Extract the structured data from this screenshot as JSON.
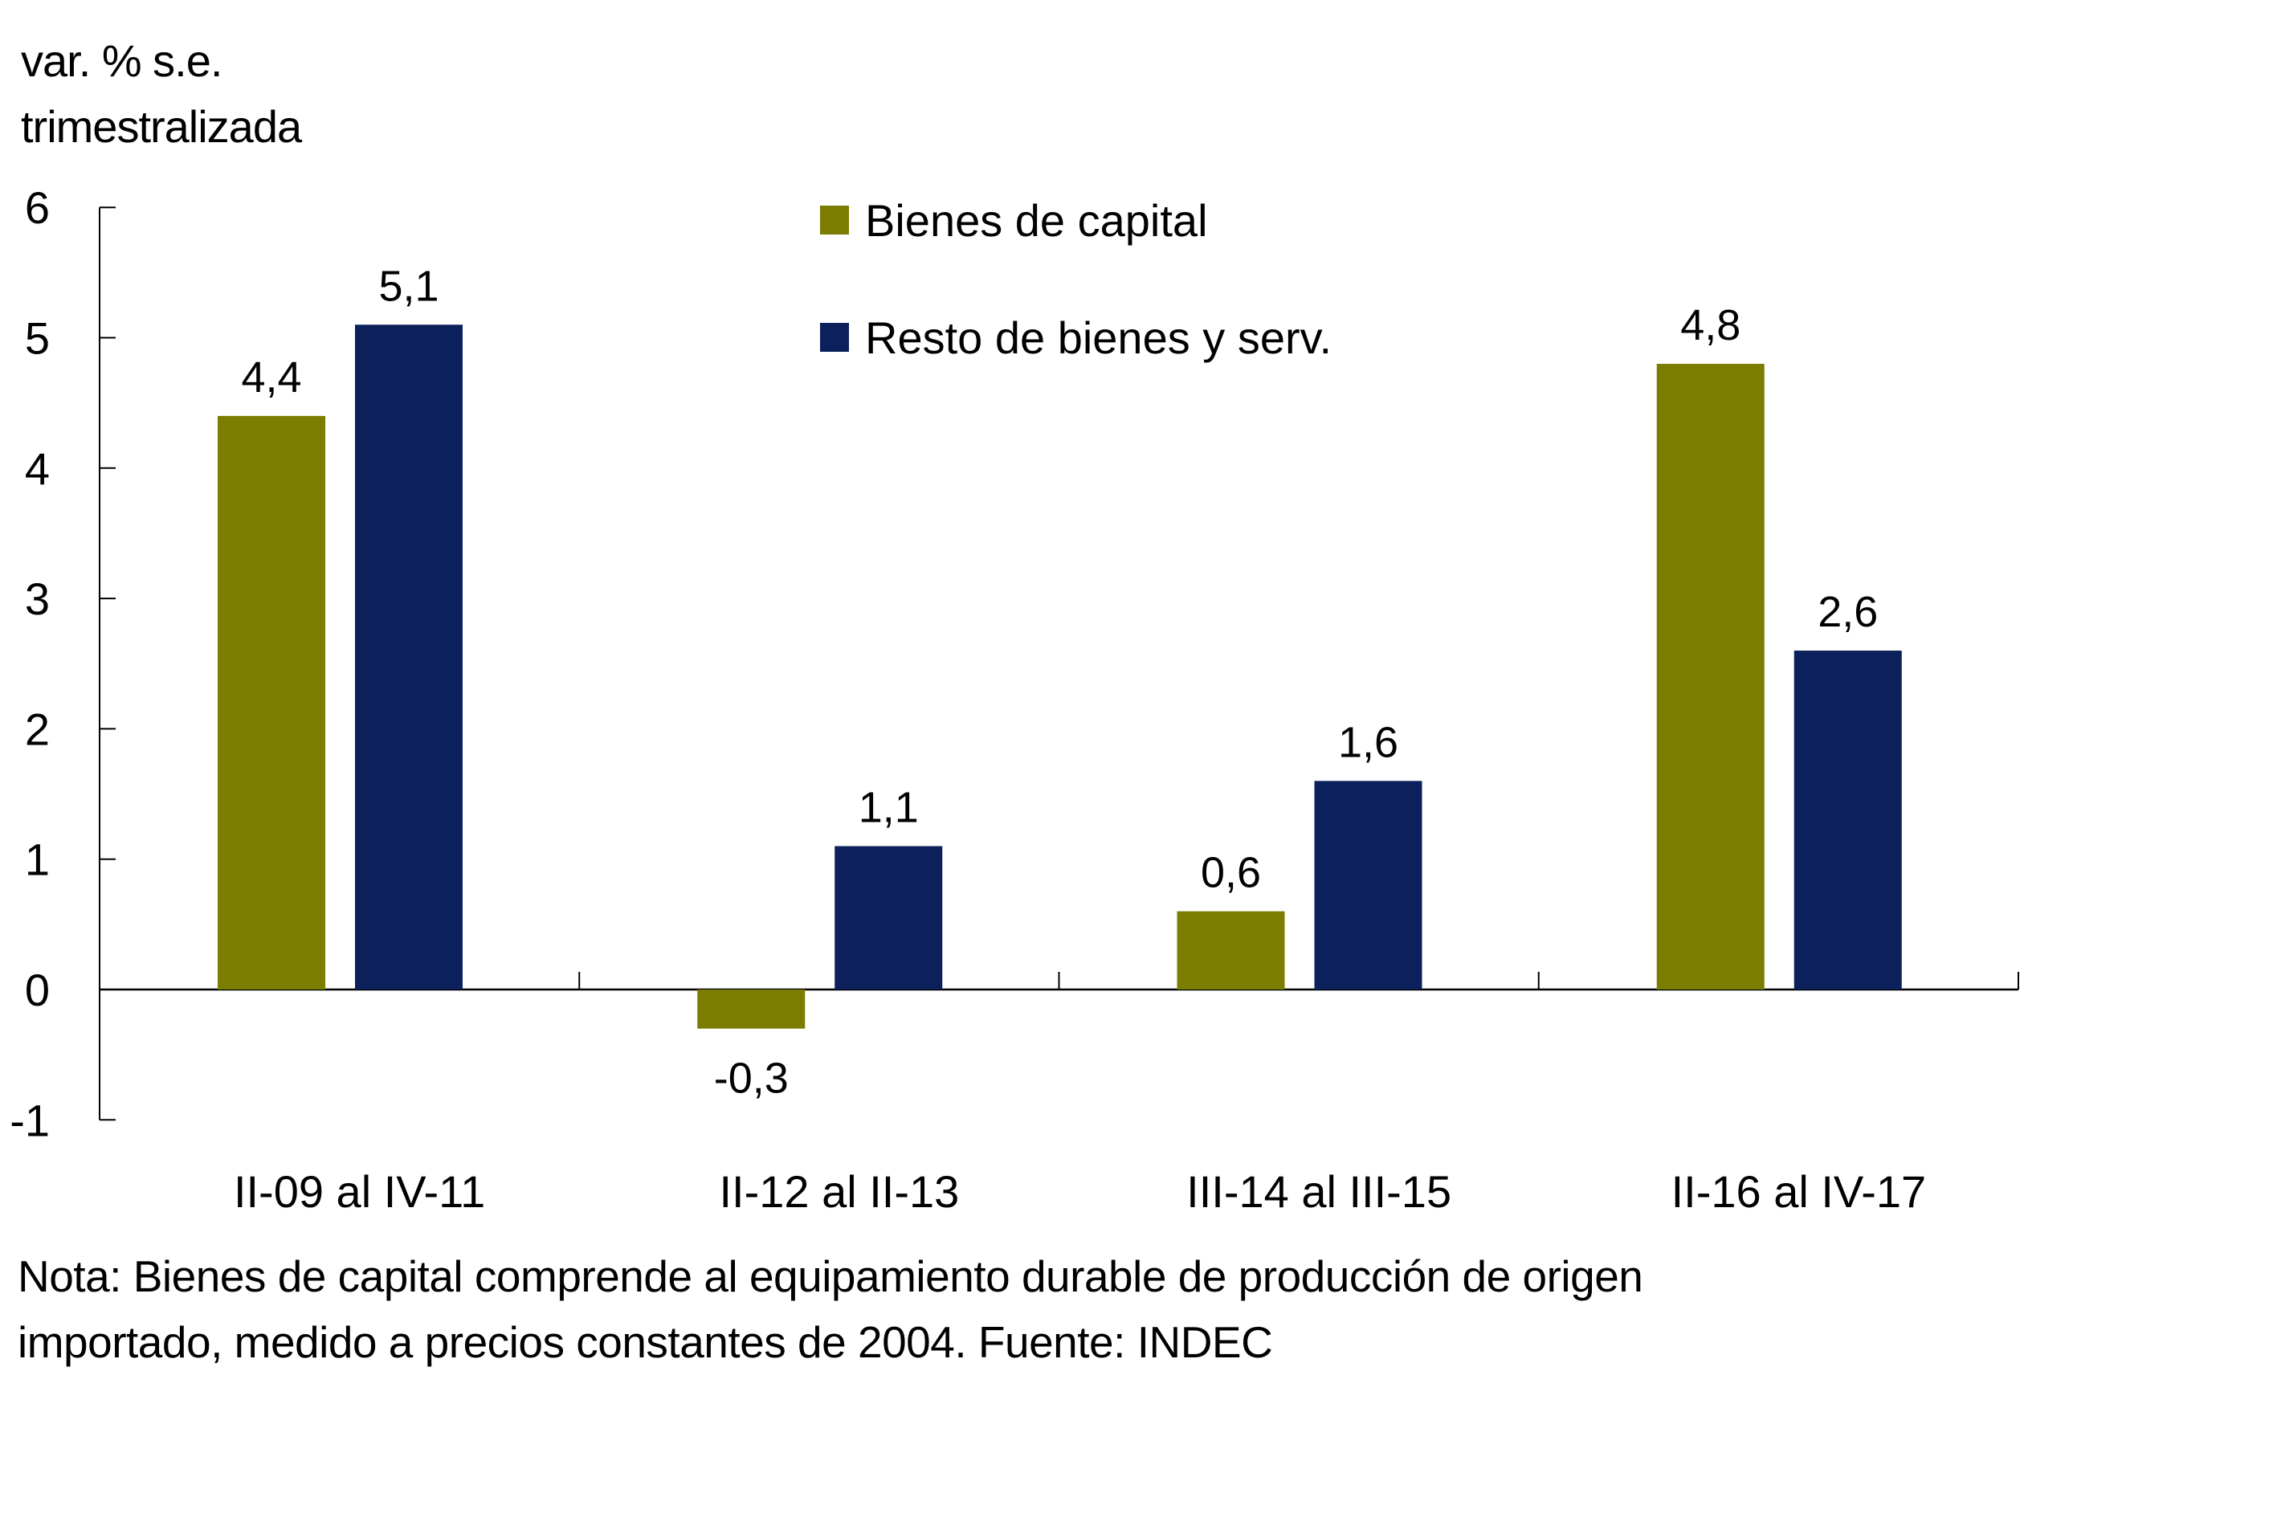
{
  "chart_data": {
    "type": "bar",
    "title": "",
    "ylabel_lines": [
      "var. % s.e.",
      "trimestralizada"
    ],
    "xlabel": "",
    "categories": [
      "II-09 al IV-11",
      "II-12 al II-13",
      "III-14 al III-15",
      "II-16 al IV-17"
    ],
    "series": [
      {
        "name": "Bienes de capital",
        "color": "#7A7D00",
        "values": [
          4.4,
          -0.3,
          0.6,
          4.8
        ],
        "labels": [
          "4,4",
          "-0,3",
          "0,6",
          "4,8"
        ]
      },
      {
        "name": "Resto de bienes y serv.",
        "color": "#0C215C",
        "values": [
          5.1,
          1.1,
          1.6,
          2.6
        ],
        "labels": [
          "5,1",
          "1,1",
          "1,6",
          "2,6"
        ]
      }
    ],
    "ylim": [
      -1,
      6
    ],
    "yticks": [
      6,
      5,
      4,
      3,
      2,
      1,
      0,
      -1
    ],
    "ytick_labels": [
      "6",
      "5",
      "4",
      "3",
      "2",
      "1",
      "0",
      "-1"
    ],
    "grid": false,
    "legend_position": "top-center",
    "note_lines": [
      "Nota: Bienes de capital comprende al equipamiento durable de producción de origen",
      "importado, medido a precios constantes de 2004. Fuente: INDEC"
    ]
  }
}
